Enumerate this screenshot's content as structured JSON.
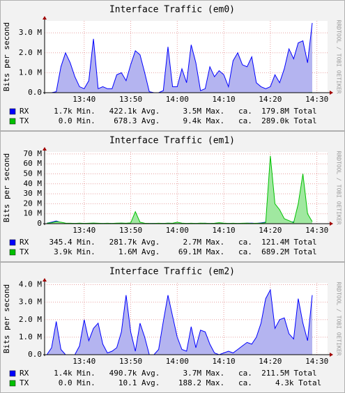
{
  "chart_data": [
    {
      "type": "area",
      "title": "Interface Traffic (em0)",
      "ylabel": "Bits per second",
      "side_text": "RRDTOOL / TOBI OETIKER",
      "xlim": [
        811.5,
        872.3
      ],
      "xticks": [
        {
          "value": 820,
          "label": "13:40"
        },
        {
          "value": 830,
          "label": "13:50"
        },
        {
          "value": 840,
          "label": "14:00"
        },
        {
          "value": 850,
          "label": "14:10"
        },
        {
          "value": 860,
          "label": "14:20"
        },
        {
          "value": 870,
          "label": "14:30"
        }
      ],
      "ylim": [
        0,
        3600000
      ],
      "yticks": [
        {
          "value": 0,
          "label": "0.0"
        },
        {
          "value": 1000000,
          "label": "1.0 M"
        },
        {
          "value": 2000000,
          "label": "2.0 M"
        },
        {
          "value": 3000000,
          "label": "3.0 M"
        }
      ],
      "grid": true,
      "x": [
        812,
        813,
        814,
        815,
        816,
        817,
        818,
        819,
        820,
        821,
        822,
        823,
        824,
        825,
        826,
        827,
        828,
        829,
        830,
        831,
        832,
        833,
        834,
        835,
        836,
        837,
        838,
        839,
        840,
        841,
        842,
        843,
        844,
        845,
        846,
        847,
        848,
        849,
        850,
        851,
        852,
        853,
        854,
        855,
        856,
        857,
        858,
        859,
        860,
        861,
        862,
        863,
        864,
        865,
        866,
        867,
        868,
        869
      ],
      "series": [
        {
          "name": "RX",
          "color": "#0000ff",
          "fill": "#b4b4f0",
          "legend": "     1.7k Min.   422.1k Avg.     3.5M Max.   ca.  179.8M Total",
          "values": [
            0,
            0,
            50000,
            1300000,
            2000000,
            1500000,
            800000,
            300000,
            200000,
            600000,
            2700000,
            200000,
            300000,
            200000,
            200000,
            900000,
            1000000,
            600000,
            1400000,
            2100000,
            1900000,
            1000000,
            50000,
            0,
            0,
            100000,
            2300000,
            300000,
            300000,
            1200000,
            500000,
            2400000,
            1500000,
            100000,
            200000,
            1300000,
            800000,
            1100000,
            900000,
            300000,
            1600000,
            2000000,
            1400000,
            1300000,
            1800000,
            500000,
            300000,
            200000,
            300000,
            900000,
            500000,
            1200000,
            2200000,
            1700000,
            2500000,
            2600000,
            1500000,
            3500000
          ]
        },
        {
          "name": "TX",
          "color": "#00c000",
          "fill": "#a0e8a0",
          "legend": "      0.0 Min.    678.3 Avg.     9.4k Max.   ca.  289.0k Total",
          "values": [
            0,
            0,
            300,
            900,
            1200,
            800,
            500,
            400,
            300,
            500,
            1500,
            300,
            400,
            300,
            300,
            700,
            800,
            500,
            900,
            1300,
            1100,
            700,
            200,
            0,
            0,
            200,
            1400,
            400,
            400,
            900,
            500,
            1500,
            1000,
            200,
            300,
            900,
            600,
            800,
            700,
            400,
            1000,
            1200,
            900,
            900,
            1100,
            500,
            400,
            300,
            400,
            700,
            500,
            800,
            1300,
            1000,
            1500,
            1600,
            1000,
            9400
          ]
        }
      ]
    },
    {
      "type": "area",
      "title": "Interface Traffic (em1)",
      "ylabel": "Bits per second",
      "side_text": "RRDTOOL / TOBI OETIKER",
      "xlim": [
        811.5,
        872.3
      ],
      "xticks": [
        {
          "value": 820,
          "label": "13:40"
        },
        {
          "value": 830,
          "label": "13:50"
        },
        {
          "value": 840,
          "label": "14:00"
        },
        {
          "value": 850,
          "label": "14:10"
        },
        {
          "value": 860,
          "label": "14:20"
        },
        {
          "value": 870,
          "label": "14:30"
        }
      ],
      "ylim": [
        0,
        72000000
      ],
      "yticks": [
        0,
        {
          "value": 10000000,
          "label": "10 M"
        },
        {
          "value": 20000000,
          "label": "20 M"
        },
        {
          "value": 30000000,
          "label": "30 M"
        },
        {
          "value": 40000000,
          "label": "40 M"
        },
        {
          "value": 50000000,
          "label": "50 M"
        },
        {
          "value": 60000000,
          "label": "60 M"
        },
        {
          "value": 70000000,
          "label": "70 M"
        }
      ],
      "grid": true,
      "x": [
        812,
        813,
        814,
        815,
        816,
        817,
        818,
        819,
        820,
        821,
        822,
        823,
        824,
        825,
        826,
        827,
        828,
        829,
        830,
        831,
        832,
        833,
        834,
        835,
        836,
        837,
        838,
        839,
        840,
        841,
        842,
        843,
        844,
        845,
        846,
        847,
        848,
        849,
        850,
        851,
        852,
        853,
        854,
        855,
        856,
        857,
        858,
        859,
        860,
        861,
        862,
        863,
        864,
        865,
        866,
        867,
        868,
        869
      ],
      "series": [
        {
          "name": "RX",
          "color": "#0000ff",
          "fill": "#b4b4f0",
          "legend": "    345.4 Min.   281.7k Avg.     2.7M Max.   ca.  121.4M Total",
          "values": [
            500000,
            1500000,
            2700000,
            1200000,
            400000,
            300000,
            200000,
            300000,
            200000,
            300000,
            400000,
            300000,
            200000,
            300000,
            200000,
            300000,
            400000,
            300000,
            200000,
            600000,
            300000,
            200000,
            200000,
            300000,
            200000,
            300000,
            400000,
            300000,
            800000,
            300000,
            200000,
            300000,
            200000,
            300000,
            400000,
            200000,
            300000,
            200000,
            300000,
            200000,
            300000,
            200000,
            300000,
            400000,
            500000,
            300000,
            800000,
            1500000,
            2000000,
            1200000,
            1000000,
            800000,
            1500000,
            1800000,
            1200000,
            2500000,
            1000000,
            600000
          ]
        },
        {
          "name": "TX",
          "color": "#00c000",
          "fill": "#a0e8a0",
          "legend": "     3.9k Min.     1.6M Avg.    69.1M Max.   ca.  689.2M Total",
          "values": [
            500000,
            1000000,
            2000000,
            1500000,
            500000,
            400000,
            300000,
            500000,
            300000,
            400000,
            600000,
            400000,
            300000,
            400000,
            300000,
            500000,
            600000,
            400000,
            800000,
            12000000,
            1500000,
            400000,
            300000,
            300000,
            400000,
            300000,
            500000,
            400000,
            1500000,
            500000,
            300000,
            400000,
            300000,
            500000,
            400000,
            300000,
            400000,
            1000000,
            500000,
            300000,
            400000,
            300000,
            400000,
            500000,
            300000,
            400000,
            500000,
            1000000,
            68000000,
            20000000,
            14000000,
            5000000,
            3000000,
            1000000,
            20000000,
            50000000,
            10000000,
            2000000
          ]
        }
      ]
    },
    {
      "type": "area",
      "title": "Interface Traffic (em2)",
      "ylabel": "Bits per second",
      "side_text": "RRDTOOL / TOBI OETIKER",
      "xlim": [
        811.5,
        872.3
      ],
      "xticks": [
        {
          "value": 820,
          "label": "13:40"
        },
        {
          "value": 830,
          "label": "13:50"
        },
        {
          "value": 840,
          "label": "14:00"
        },
        {
          "value": 850,
          "label": "14:10"
        },
        {
          "value": 860,
          "label": "14:20"
        },
        {
          "value": 870,
          "label": "14:30"
        }
      ],
      "ylim": [
        0,
        4100000
      ],
      "yticks": [
        {
          "value": 0,
          "label": "0.0"
        },
        {
          "value": 1000000,
          "label": "1.0 M"
        },
        {
          "value": 2000000,
          "label": "2.0 M"
        },
        {
          "value": 3000000,
          "label": "3.0 M"
        },
        {
          "value": 4000000,
          "label": "4.0 M"
        }
      ],
      "grid": true,
      "x": [
        812,
        813,
        814,
        815,
        816,
        817,
        818,
        819,
        820,
        821,
        822,
        823,
        824,
        825,
        826,
        827,
        828,
        829,
        830,
        831,
        832,
        833,
        834,
        835,
        836,
        837,
        838,
        839,
        840,
        841,
        842,
        843,
        844,
        845,
        846,
        847,
        848,
        849,
        850,
        851,
        852,
        853,
        854,
        855,
        856,
        857,
        858,
        859,
        860,
        861,
        862,
        863,
        864,
        865,
        866,
        867,
        868,
        869
      ],
      "series": [
        {
          "name": "RX",
          "color": "#0000ff",
          "fill": "#b4b4f0",
          "legend": "     1.4k Min.   490.7k Avg.     3.7M Max.   ca.  211.5M Total",
          "values": [
            0,
            400000,
            1900000,
            300000,
            0,
            0,
            0,
            500000,
            2000000,
            800000,
            1500000,
            1800000,
            600000,
            100000,
            200000,
            400000,
            1300000,
            3400000,
            1300000,
            200000,
            1800000,
            1000000,
            0,
            0,
            300000,
            1900000,
            3400000,
            2200000,
            1000000,
            300000,
            200000,
            1600000,
            400000,
            1400000,
            1300000,
            600000,
            100000,
            0,
            100000,
            200000,
            100000,
            300000,
            500000,
            700000,
            600000,
            1000000,
            1800000,
            3200000,
            3700000,
            1500000,
            2000000,
            2100000,
            1200000,
            900000,
            3200000,
            1800000,
            800000,
            3400000
          ]
        },
        {
          "name": "TX",
          "color": "#00c000",
          "fill": "#a0e8a0",
          "legend": "      0.0 Min.     10.1 Avg.    188.2 Max.   ca.     4.3k Total",
          "values": [
            0,
            0,
            20,
            0,
            0,
            0,
            0,
            0,
            10,
            0,
            0,
            20,
            0,
            0,
            0,
            0,
            10,
            188,
            0,
            0,
            10,
            0,
            0,
            0,
            0,
            0,
            20,
            0,
            0,
            0,
            0,
            10,
            0,
            0,
            0,
            0,
            0,
            0,
            0,
            0,
            0,
            0,
            0,
            0,
            0,
            10,
            20,
            0,
            0,
            0,
            20,
            0,
            0,
            10,
            0,
            0,
            0,
            0
          ]
        }
      ]
    }
  ]
}
